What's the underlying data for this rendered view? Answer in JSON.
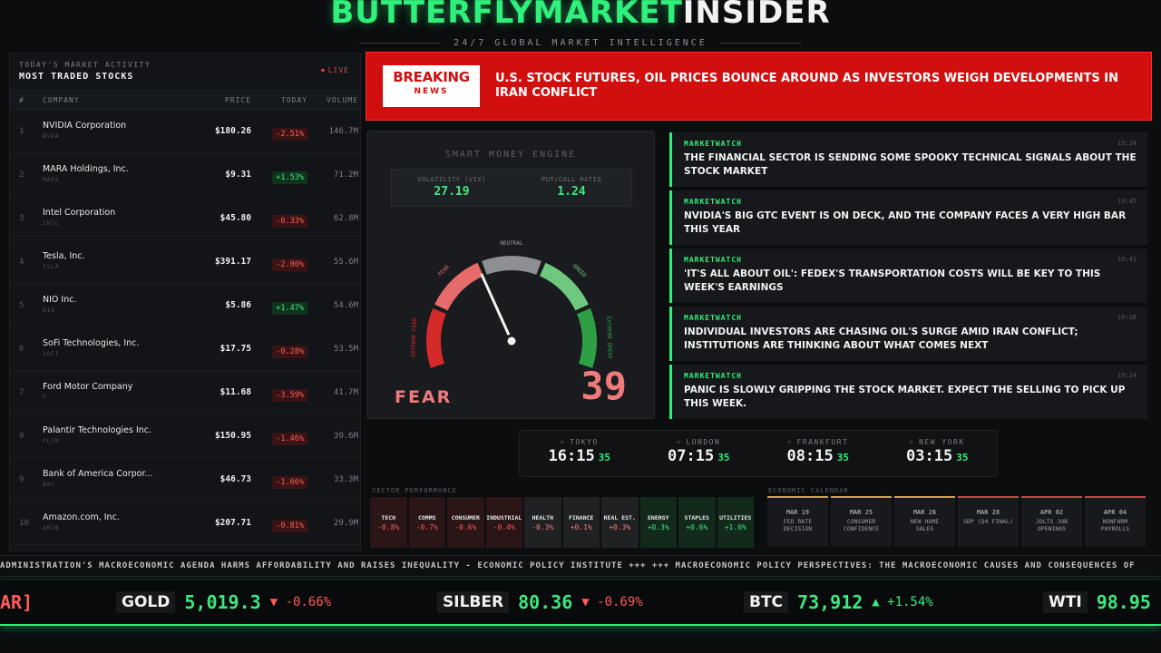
{
  "header": {
    "brand_green": "BUTTERFLYMARKET",
    "brand_white": "INSIDER",
    "tagline": "24/7 GLOBAL MARKET INTELLIGENCE"
  },
  "stocks": {
    "subtitle": "TODAY'S MARKET ACTIVITY",
    "title": "MOST TRADED STOCKS",
    "live": "LIVE",
    "columns": {
      "num": "#",
      "company": "COMPANY",
      "price": "PRICE",
      "today": "TODAY",
      "volume": "VOLUME"
    },
    "rows": [
      {
        "num": "1",
        "name": "NVIDIA Corporation",
        "ticker": "NVDA",
        "price": "$180.26",
        "change": "-2.51%",
        "dir": "neg",
        "volume": "146.7M"
      },
      {
        "num": "2",
        "name": "MARA Holdings, Inc.",
        "ticker": "MARA",
        "price": "$9.31",
        "change": "+1.53%",
        "dir": "pos",
        "volume": "71.2M"
      },
      {
        "num": "3",
        "name": "Intel Corporation",
        "ticker": "INTC",
        "price": "$45.80",
        "change": "-0.33%",
        "dir": "neg",
        "volume": "62.8M"
      },
      {
        "num": "4",
        "name": "Tesla, Inc.",
        "ticker": "TSLA",
        "price": "$391.17",
        "change": "-2.00%",
        "dir": "neg",
        "volume": "55.6M"
      },
      {
        "num": "5",
        "name": "NIO Inc.",
        "ticker": "NIO",
        "price": "$5.86",
        "change": "+1.47%",
        "dir": "pos",
        "volume": "54.6M"
      },
      {
        "num": "6",
        "name": "SoFi Technologies, Inc.",
        "ticker": "SOFI",
        "price": "$17.75",
        "change": "-0.28%",
        "dir": "neg",
        "volume": "53.5M"
      },
      {
        "num": "7",
        "name": "Ford Motor Company",
        "ticker": "F",
        "price": "$11.68",
        "change": "-3.59%",
        "dir": "neg",
        "volume": "41.7M"
      },
      {
        "num": "8",
        "name": "Palantir Technologies Inc.",
        "ticker": "PLTR",
        "price": "$150.95",
        "change": "-1.46%",
        "dir": "neg",
        "volume": "39.6M"
      },
      {
        "num": "9",
        "name": "Bank of America Corpor...",
        "ticker": "BAC",
        "price": "$46.73",
        "change": "-1.66%",
        "dir": "neg",
        "volume": "33.3M"
      },
      {
        "num": "10",
        "name": "Amazon.com, Inc.",
        "ticker": "AMZN",
        "price": "$207.71",
        "change": "-0.81%",
        "dir": "neg",
        "volume": "29.9M"
      }
    ]
  },
  "breaking": {
    "badge_top": "BREAKING",
    "badge_bottom": "NEWS",
    "headline": "U.S. STOCK FUTURES, OIL PRICES BOUNCE AROUND AS INVESTORS WEIGH DEVELOPMENTS IN IRAN CONFLICT",
    "color": "#d10f0f"
  },
  "gauge": {
    "title": "SMART MONEY ENGINE",
    "vix_label": "VOLATILITY (VIX)",
    "vix_value": "27.19",
    "pcr_label": "PUT/CALL RATIO",
    "pcr_value": "1.24",
    "zone_labels": {
      "extreme_fear": "EXTREME FEAR",
      "fear": "FEAR",
      "neutral": "NEUTRAL",
      "greed": "GREED",
      "extreme_greed": "EXTREME GREED"
    },
    "sentiment": "FEAR",
    "score": "39",
    "score_value": 39
  },
  "feed": [
    {
      "source": "MARKETWATCH",
      "time": "19:34",
      "text": "THE FINANCIAL SECTOR IS SENDING SOME SPOOKY TECHNICAL SIGNALS ABOUT THE STOCK MARKET"
    },
    {
      "source": "MARKETWATCH",
      "time": "19:45",
      "text": "NVIDIA'S BIG GTC EVENT IS ON DECK, AND THE COMPANY FACES A VERY HIGH BAR THIS YEAR"
    },
    {
      "source": "MARKETWATCH",
      "time": "19:41",
      "text": "'IT'S ALL ABOUT OIL': FEDEX'S TRANSPORTATION COSTS WILL BE KEY TO THIS WEEK'S EARNINGS"
    },
    {
      "source": "MARKETWATCH",
      "time": "19:18",
      "text": "INDIVIDUAL INVESTORS ARE CHASING OIL'S SURGE AMID IRAN CONFLICT; INSTITUTIONS ARE THINKING ABOUT WHAT COMES NEXT"
    },
    {
      "source": "MARKETWATCH",
      "time": "19:14",
      "text": "PANIC IS SLOWLY GRIPPING THE STOCK MARKET. EXPECT THE SELLING TO PICK UP THIS WEEK."
    }
  ],
  "clocks": [
    {
      "city": "TOKYO",
      "time": "16:15",
      "sec": "35"
    },
    {
      "city": "LONDON",
      "time": "07:15",
      "sec": "35"
    },
    {
      "city": "FRANKFURT",
      "time": "08:15",
      "sec": "35"
    },
    {
      "city": "NEW YORK",
      "time": "03:15",
      "sec": "35"
    }
  ],
  "sectors": {
    "title": "SECTOR PERFORMANCE",
    "items": [
      {
        "name": "TECH",
        "value": "-0.8%",
        "dir": "neg"
      },
      {
        "name": "COMMS",
        "value": "-0.7%",
        "dir": "neg"
      },
      {
        "name": "CONSUMER",
        "value": "-0.6%",
        "dir": "neg"
      },
      {
        "name": "INDUSTRIAL",
        "value": "-0.4%",
        "dir": "neg"
      },
      {
        "name": "HEALTH",
        "value": "-0.3%",
        "dir": "neu"
      },
      {
        "name": "FINANCE",
        "value": "+0.1%",
        "dir": "neu"
      },
      {
        "name": "REAL EST.",
        "value": "+0.3%",
        "dir": "neu"
      },
      {
        "name": "ENERGY",
        "value": "+0.3%",
        "dir": "pos"
      },
      {
        "name": "STAPLES",
        "value": "+0.6%",
        "dir": "pos"
      },
      {
        "name": "UTILITIES",
        "value": "+1.0%",
        "dir": "pos"
      }
    ]
  },
  "calendar": {
    "title": "ECONOMIC CALENDAR",
    "events": [
      {
        "date": "MAR 19",
        "line1": "FED RATE",
        "line2": "DECISION",
        "tone": "gold"
      },
      {
        "date": "MAR 25",
        "line1": "CONSUMER",
        "line2": "CONFIDENCE",
        "tone": "gold"
      },
      {
        "date": "MAR 26",
        "line1": "NEW HOME",
        "line2": "SALES",
        "tone": "gold"
      },
      {
        "date": "MAR 28",
        "line1": "GDP (Q4 FINAL)",
        "line2": "",
        "tone": "red"
      },
      {
        "date": "APR 02",
        "line1": "JOLTS JOB",
        "line2": "OPENINGS",
        "tone": "red"
      },
      {
        "date": "APR 04",
        "line1": "NONFARM",
        "line2": "PAYROLLS",
        "tone": "red"
      }
    ]
  },
  "news_ticker": "ADMINISTRATION'S MACROECONOMIC AGENDA HARMS AFFORDABILITY AND RAISES INEQUALITY - ECONOMIC POLICY INSTITUTE +++ +++ MACROECONOMIC POLICY PERSPECTIVES: THE MACROECONOMIC CAUSES AND CONSEQUENCES OF",
  "price_ticker": {
    "cut_prefix": "AR]",
    "items": [
      {
        "symbol": "GOLD",
        "value": "5,019.3",
        "arrow": "▼",
        "change": "-0.66%",
        "dir": "neg"
      },
      {
        "symbol": "SILBER",
        "value": "80.36",
        "arrow": "▼",
        "change": "-0.69%",
        "dir": "neg"
      },
      {
        "symbol": "BTC",
        "value": "73,912",
        "arrow": "▲",
        "change": "+1.54%",
        "dir": "pos"
      },
      {
        "symbol": "WTI",
        "value": "98.95",
        "arrow": "",
        "change": "",
        "dir": "pos"
      }
    ]
  }
}
